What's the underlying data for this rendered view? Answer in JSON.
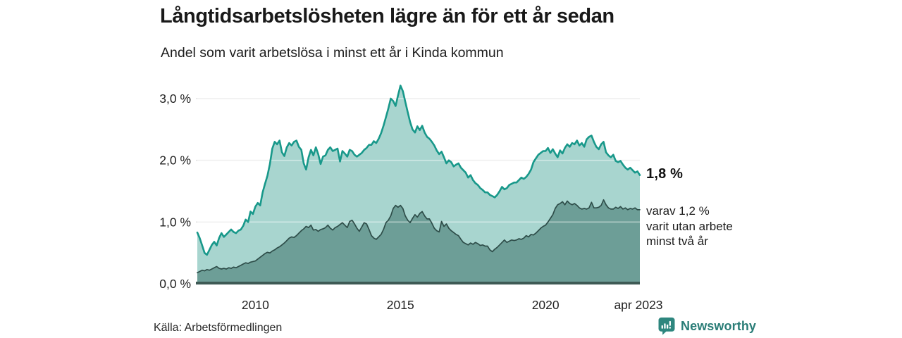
{
  "header": {
    "title": "Långtidsarbetslösheten lägre än för ett år sedan",
    "subtitle": "Andel som varit arbetslösa i minst ett år i Kinda kommun"
  },
  "chart_data": {
    "type": "area",
    "title": "Långtidsarbetslösheten lägre än för ett år sedan",
    "subtitle": "Andel som varit arbetslösa i minst ett år i Kinda kommun",
    "x_unit": "month",
    "x_start": "jan 2008",
    "x_end": "apr 2023",
    "ylim": [
      0,
      3.3
    ],
    "grid": "horizontal",
    "legend_position": "none",
    "yticks": [
      {
        "value": 0,
        "label": "0,0 %"
      },
      {
        "value": 1,
        "label": "1,0 %"
      },
      {
        "value": 2,
        "label": "2,0 %"
      },
      {
        "value": 3,
        "label": "3,0 %"
      }
    ],
    "xticks": [
      {
        "month_index": 24,
        "label": "2010"
      },
      {
        "month_index": 84,
        "label": "2015"
      },
      {
        "month_index": 144,
        "label": "2020"
      },
      {
        "month_index": 183,
        "label": "apr 2023"
      }
    ],
    "series": [
      {
        "name": "Andel som varit arbetslösa i minst ett år (totalt)",
        "line_color": "#18988a",
        "fill_color": "#a8d5cf",
        "end_value": "1,8 %",
        "values": [
          0.83,
          0.74,
          0.62,
          0.5,
          0.47,
          0.55,
          0.63,
          0.68,
          0.62,
          0.74,
          0.82,
          0.76,
          0.8,
          0.84,
          0.88,
          0.84,
          0.82,
          0.86,
          0.88,
          0.94,
          1.04,
          1.0,
          1.17,
          1.13,
          1.25,
          1.31,
          1.27,
          1.48,
          1.62,
          1.75,
          1.94,
          2.19,
          2.3,
          2.26,
          2.32,
          2.13,
          2.07,
          2.21,
          2.28,
          2.24,
          2.3,
          2.32,
          2.22,
          2.17,
          1.95,
          1.85,
          2.05,
          2.17,
          2.08,
          2.21,
          2.1,
          1.94,
          2.06,
          2.08,
          2.17,
          2.21,
          2.15,
          2.17,
          2.19,
          1.98,
          2.15,
          2.11,
          2.06,
          2.17,
          2.15,
          2.09,
          2.06,
          2.09,
          2.12,
          2.17,
          2.2,
          2.25,
          2.25,
          2.31,
          2.28,
          2.35,
          2.44,
          2.56,
          2.7,
          2.84,
          3.0,
          2.96,
          2.88,
          3.05,
          3.21,
          3.12,
          2.95,
          2.78,
          2.62,
          2.5,
          2.45,
          2.55,
          2.49,
          2.56,
          2.45,
          2.38,
          2.35,
          2.3,
          2.24,
          2.16,
          2.1,
          2.14,
          2.05,
          1.95,
          2.0,
          1.97,
          1.9,
          1.93,
          1.95,
          1.88,
          1.84,
          1.8,
          1.72,
          1.76,
          1.68,
          1.63,
          1.6,
          1.55,
          1.52,
          1.48,
          1.48,
          1.44,
          1.42,
          1.4,
          1.44,
          1.5,
          1.57,
          1.53,
          1.55,
          1.6,
          1.62,
          1.64,
          1.64,
          1.68,
          1.72,
          1.7,
          1.73,
          1.78,
          1.85,
          1.97,
          2.03,
          2.09,
          2.12,
          2.15,
          2.15,
          2.2,
          2.12,
          2.18,
          2.11,
          2.05,
          2.16,
          2.11,
          2.2,
          2.26,
          2.22,
          2.28,
          2.26,
          2.32,
          2.24,
          2.28,
          2.22,
          2.34,
          2.38,
          2.4,
          2.3,
          2.22,
          2.18,
          2.26,
          2.3,
          2.13,
          2.08,
          2.05,
          2.09,
          1.99,
          1.97,
          1.99,
          1.93,
          1.88,
          1.85,
          1.88,
          1.84,
          1.8,
          1.82,
          1.76
        ]
      },
      {
        "name": "varav utan arbete minst två år",
        "line_color": "#2e4d49",
        "fill_color": "#6d9e97",
        "end_value": "1,2 %",
        "values": [
          0.18,
          0.2,
          0.22,
          0.21,
          0.23,
          0.22,
          0.24,
          0.26,
          0.28,
          0.25,
          0.24,
          0.25,
          0.24,
          0.26,
          0.25,
          0.27,
          0.26,
          0.28,
          0.3,
          0.32,
          0.34,
          0.33,
          0.35,
          0.36,
          0.37,
          0.4,
          0.43,
          0.46,
          0.49,
          0.51,
          0.5,
          0.53,
          0.55,
          0.58,
          0.6,
          0.63,
          0.66,
          0.7,
          0.74,
          0.76,
          0.75,
          0.78,
          0.82,
          0.86,
          0.89,
          0.93,
          0.91,
          0.95,
          0.87,
          0.88,
          0.85,
          0.88,
          0.89,
          0.91,
          0.95,
          0.9,
          0.87,
          0.91,
          0.93,
          0.96,
          0.99,
          0.95,
          0.91,
          1.01,
          1.03,
          0.97,
          0.9,
          0.85,
          0.92,
          0.99,
          0.97,
          0.88,
          0.78,
          0.74,
          0.72,
          0.76,
          0.8,
          0.88,
          0.99,
          1.03,
          1.1,
          1.22,
          1.27,
          1.24,
          1.27,
          1.22,
          1.1,
          1.03,
          0.99,
          1.06,
          1.12,
          1.08,
          1.14,
          1.17,
          1.1,
          1.05,
          1.05,
          0.98,
          0.9,
          0.86,
          0.84,
          1.01,
          0.93,
          0.97,
          0.9,
          0.86,
          0.83,
          0.8,
          0.78,
          0.72,
          0.67,
          0.65,
          0.63,
          0.66,
          0.64,
          0.67,
          0.65,
          0.62,
          0.63,
          0.61,
          0.61,
          0.55,
          0.52,
          0.56,
          0.59,
          0.63,
          0.67,
          0.71,
          0.67,
          0.69,
          0.71,
          0.7,
          0.71,
          0.73,
          0.72,
          0.74,
          0.78,
          0.76,
          0.8,
          0.79,
          0.82,
          0.86,
          0.9,
          0.93,
          0.95,
          1.0,
          1.06,
          1.12,
          1.22,
          1.28,
          1.3,
          1.33,
          1.28,
          1.34,
          1.3,
          1.28,
          1.3,
          1.27,
          1.23,
          1.21,
          1.22,
          1.21,
          1.23,
          1.32,
          1.23,
          1.23,
          1.24,
          1.27,
          1.36,
          1.28,
          1.23,
          1.21,
          1.21,
          1.24,
          1.22,
          1.25,
          1.21,
          1.23,
          1.2,
          1.22,
          1.21,
          1.23,
          1.2,
          1.2
        ]
      }
    ],
    "annotations": {
      "end_value_label": "1,8 %",
      "sub_label_lines": [
        "varav 1,2 %",
        "varit utan arbete",
        "minst två år"
      ]
    }
  },
  "colors": {
    "total_line": "#18988a",
    "total_fill": "#a8d5cf",
    "two_year_line": "#2e4d49",
    "two_year_fill": "#6d9e97",
    "axis_bar": "#3e5a55",
    "gridline": "#e3e3e3",
    "brand_teal": "#2a7d77"
  },
  "footer": {
    "source": "Källa: Arbetsförmedlingen",
    "brand": "Newsworthy"
  }
}
